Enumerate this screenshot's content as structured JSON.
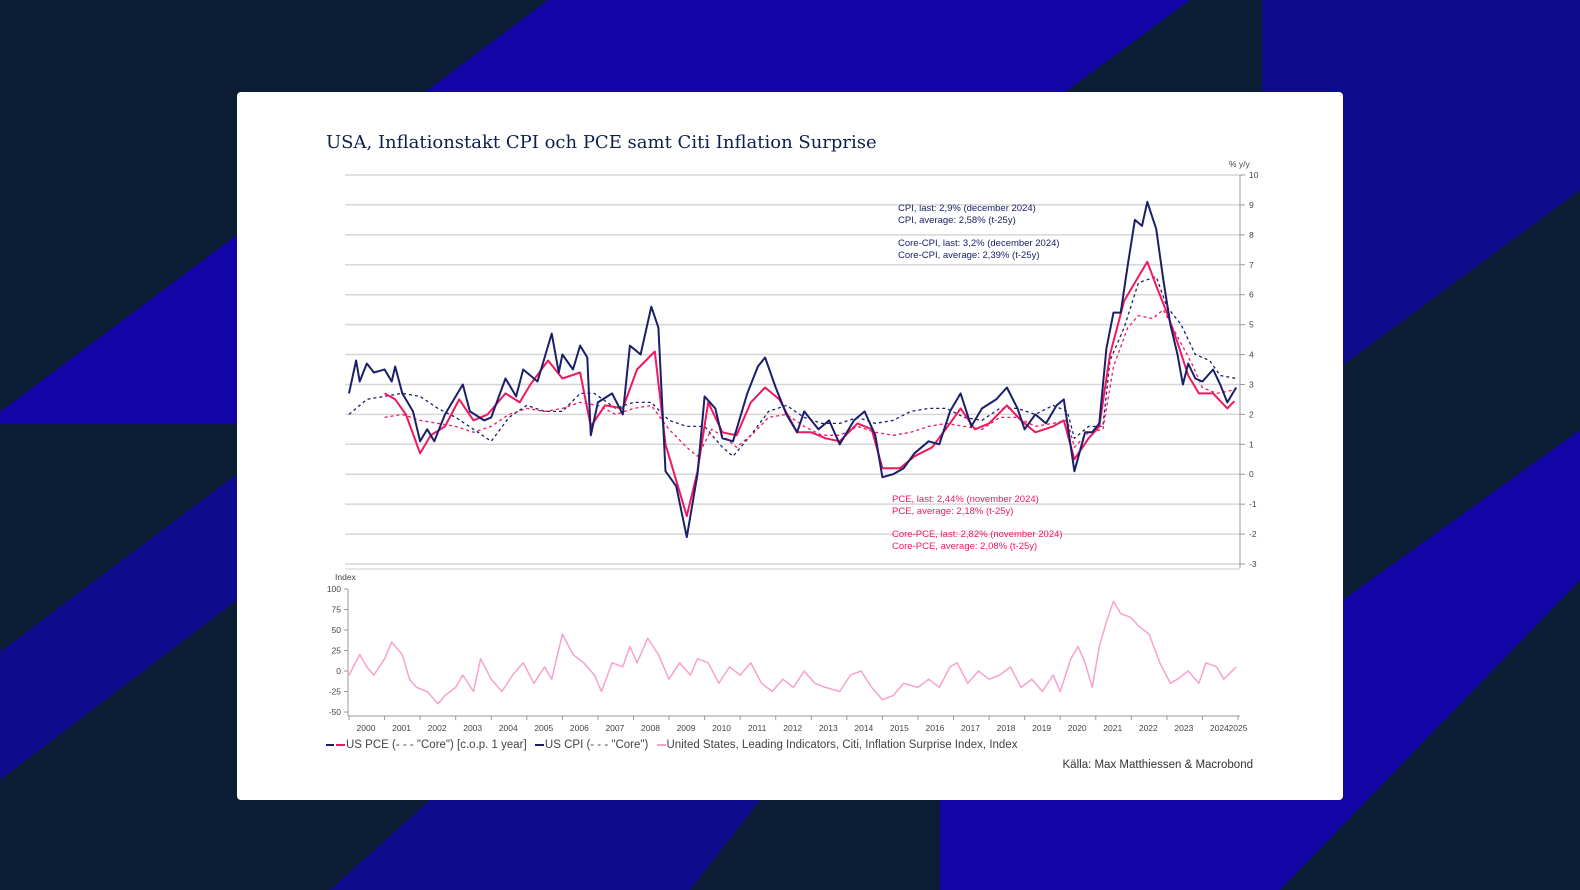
{
  "title": "USA, Inflationstakt CPI och PCE samt Citi Inflation Surprise",
  "colors": {
    "cpi": "#1b1f6b",
    "pce": "#f0185e",
    "citi": "#f7a1cf",
    "background": "#0b1c35",
    "accent": "#1405a6"
  },
  "annotations": {
    "cpi_last": "CPI, last: 2,9% (december 2024)",
    "cpi_avg": "CPI, average: 2,58% (t-25y)",
    "core_cpi_last": "Core-CPI, last: 3,2% (december 2024)",
    "core_cpi_avg": "Core-CPI, average: 2,39% (t-25y)",
    "pce_last": "PCE, last: 2,44% (november 2024)",
    "pce_avg": "PCE, average: 2,18% (t-25y)",
    "core_pce_last": "Core-PCE, last: 2,82% (november 2024)",
    "core_pce_avg": "Core-PCE, average: 2,08% (t-25y)"
  },
  "legend": {
    "pce": "US PCE (- - - \"Core\") [c.o.p. 1 year]",
    "cpi": "US CPI (- - - \"Core\")",
    "citi": "United States, Leading Indicators, Citi, Inflation Surprise Index, Index"
  },
  "source": "Källa: Max Matthiessen & Macrobond",
  "chart_data": [
    {
      "type": "line",
      "ylabel": "% y/y",
      "ylim": [
        -3,
        10
      ],
      "yticks": [
        -3,
        -2,
        -1,
        0,
        1,
        2,
        3,
        4,
        5,
        6,
        7,
        8,
        9,
        10
      ],
      "xlim": [
        2000,
        2025
      ],
      "grid": true,
      "series": [
        {
          "name": "US CPI",
          "style": "solid",
          "color": "#1b1f6b",
          "x": [
            2000,
            2000.2,
            2000.3,
            2000.5,
            2000.7,
            2001.0,
            2001.2,
            2001.3,
            2001.5,
            2001.8,
            2002.0,
            2002.2,
            2002.4,
            2002.7,
            2003.0,
            2003.2,
            2003.4,
            2003.8,
            2004.0,
            2004.4,
            2004.7,
            2004.9,
            2005.3,
            2005.7,
            2005.9,
            2006.0,
            2006.3,
            2006.5,
            2006.7,
            2006.8,
            2007.0,
            2007.4,
            2007.7,
            2007.9,
            2008.2,
            2008.5,
            2008.7,
            2008.9,
            2009.2,
            2009.5,
            2009.8,
            2010.0,
            2010.3,
            2010.5,
            2010.8,
            2011.2,
            2011.5,
            2011.7,
            2012.0,
            2012.3,
            2012.6,
            2012.8,
            2013.2,
            2013.5,
            2013.8,
            2014.2,
            2014.5,
            2014.8,
            2015.0,
            2015.3,
            2015.6,
            2015.9,
            2016.3,
            2016.6,
            2016.9,
            2017.2,
            2017.5,
            2017.8,
            2018.2,
            2018.5,
            2018.8,
            2019.0,
            2019.3,
            2019.6,
            2019.9,
            2020.1,
            2020.4,
            2020.7,
            2020.9,
            2021.1,
            2021.3,
            2021.5,
            2021.7,
            2021.9,
            2022.1,
            2022.3,
            2022.45,
            2022.7,
            2022.9,
            2023.1,
            2023.3,
            2023.45,
            2023.6,
            2023.8,
            2024.0,
            2024.3,
            2024.5,
            2024.7,
            2024.95
          ],
          "y": [
            2.7,
            3.8,
            3.1,
            3.7,
            3.4,
            3.5,
            3.1,
            3.6,
            2.7,
            2.1,
            1.1,
            1.5,
            1.1,
            2.0,
            2.6,
            3.0,
            2.1,
            1.8,
            1.9,
            3.2,
            2.6,
            3.5,
            3.1,
            4.7,
            3.4,
            4.0,
            3.5,
            4.3,
            3.9,
            1.3,
            2.4,
            2.7,
            2.0,
            4.3,
            4.0,
            5.6,
            4.9,
            0.1,
            -0.4,
            -2.1,
            0.0,
            2.6,
            2.2,
            1.2,
            1.1,
            2.7,
            3.6,
            3.9,
            2.9,
            2.0,
            1.4,
            2.1,
            1.5,
            1.8,
            1.0,
            1.8,
            2.1,
            1.3,
            -0.1,
            0.0,
            0.2,
            0.7,
            1.1,
            1.0,
            2.1,
            2.7,
            1.6,
            2.2,
            2.5,
            2.9,
            2.2,
            1.5,
            2.0,
            1.7,
            2.3,
            2.5,
            0.1,
            1.4,
            1.4,
            1.7,
            4.2,
            5.4,
            5.4,
            7.0,
            8.5,
            8.3,
            9.1,
            8.2,
            6.5,
            5.0,
            4.0,
            3.0,
            3.7,
            3.2,
            3.1,
            3.5,
            3.0,
            2.4,
            2.9
          ]
        },
        {
          "name": "US Core CPI",
          "style": "dashed",
          "color": "#1b1f6b",
          "x": [
            2000,
            2000.5,
            2001,
            2001.5,
            2002,
            2002.5,
            2003,
            2003.5,
            2004,
            2004.5,
            2005,
            2005.5,
            2006,
            2006.5,
            2006.9,
            2007.5,
            2008,
            2008.5,
            2009,
            2009.5,
            2010,
            2010.5,
            2010.8,
            2011.3,
            2011.8,
            2012.3,
            2012.8,
            2013.3,
            2013.8,
            2014.3,
            2014.8,
            2015.3,
            2015.8,
            2016.3,
            2016.8,
            2017.3,
            2017.8,
            2018.3,
            2018.8,
            2019.3,
            2019.8,
            2020.2,
            2020.4,
            2020.8,
            2021.2,
            2021.4,
            2021.8,
            2022.2,
            2022.7,
            2023.0,
            2023.4,
            2023.8,
            2024.2,
            2024.5,
            2024.95
          ],
          "y": [
            2.0,
            2.5,
            2.6,
            2.7,
            2.6,
            2.2,
            1.9,
            1.5,
            1.1,
            1.9,
            2.3,
            2.1,
            2.1,
            2.7,
            2.7,
            2.2,
            2.4,
            2.4,
            1.8,
            1.6,
            1.6,
            0.9,
            0.6,
            1.3,
            2.1,
            2.3,
            1.9,
            1.7,
            1.7,
            1.9,
            1.7,
            1.8,
            2.1,
            2.2,
            2.2,
            1.9,
            1.8,
            2.2,
            2.2,
            2.0,
            2.3,
            2.1,
            1.2,
            1.6,
            1.6,
            3.8,
            4.9,
            6.4,
            6.6,
            5.6,
            5.0,
            4.0,
            3.8,
            3.3,
            3.2
          ]
        },
        {
          "name": "US PCE",
          "style": "solid",
          "color": "#f0185e",
          "x": [
            2001,
            2001.3,
            2001.6,
            2002.0,
            2002.3,
            2002.7,
            2003.1,
            2003.5,
            2003.9,
            2004.4,
            2004.8,
            2005.1,
            2005.6,
            2006.0,
            2006.5,
            2006.8,
            2007.2,
            2007.7,
            2008.1,
            2008.6,
            2008.9,
            2009.3,
            2009.5,
            2009.8,
            2010.1,
            2010.5,
            2010.9,
            2011.3,
            2011.7,
            2012.1,
            2012.6,
            2013.0,
            2013.4,
            2013.8,
            2014.3,
            2014.7,
            2015.0,
            2015.5,
            2015.9,
            2016.4,
            2016.9,
            2017.2,
            2017.6,
            2018.0,
            2018.5,
            2018.9,
            2019.3,
            2019.8,
            2020.1,
            2020.4,
            2020.8,
            2021.1,
            2021.4,
            2021.8,
            2022.2,
            2022.45,
            2022.7,
            2023.0,
            2023.3,
            2023.6,
            2023.9,
            2024.3,
            2024.7,
            2024.9
          ],
          "y": [
            2.7,
            2.5,
            2.0,
            0.7,
            1.3,
            1.6,
            2.5,
            1.8,
            2.0,
            2.7,
            2.4,
            3.0,
            3.8,
            3.2,
            3.4,
            1.6,
            2.3,
            2.2,
            3.5,
            4.1,
            1.0,
            -0.6,
            -1.4,
            0.1,
            2.4,
            1.4,
            1.3,
            2.4,
            2.9,
            2.5,
            1.4,
            1.4,
            1.2,
            1.1,
            1.7,
            1.5,
            0.2,
            0.2,
            0.6,
            0.9,
            1.7,
            2.2,
            1.5,
            1.7,
            2.3,
            1.8,
            1.4,
            1.6,
            1.8,
            0.5,
            1.2,
            1.6,
            4.0,
            5.8,
            6.6,
            7.1,
            6.3,
            5.4,
            4.4,
            3.3,
            2.7,
            2.7,
            2.2,
            2.44
          ]
        },
        {
          "name": "US Core PCE",
          "style": "dashed",
          "color": "#f0185e",
          "x": [
            2001,
            2001.5,
            2002,
            2002.5,
            2003,
            2003.5,
            2004,
            2004.5,
            2005,
            2005.5,
            2006,
            2006.5,
            2007,
            2007.5,
            2008,
            2008.5,
            2009,
            2009.5,
            2009.8,
            2010.2,
            2010.6,
            2010.9,
            2011.4,
            2011.8,
            2012.3,
            2012.8,
            2013.3,
            2013.8,
            2014.3,
            2014.8,
            2015.3,
            2015.8,
            2016.3,
            2016.8,
            2017.3,
            2017.8,
            2018.3,
            2018.8,
            2019.3,
            2019.8,
            2020.2,
            2020.4,
            2020.8,
            2021.2,
            2021.5,
            2021.9,
            2022.2,
            2022.6,
            2022.9,
            2023.3,
            2023.7,
            2024.0,
            2024.4,
            2024.9
          ],
          "y": [
            1.9,
            2.0,
            1.8,
            1.7,
            1.6,
            1.4,
            1.6,
            2.0,
            2.2,
            2.1,
            2.2,
            2.4,
            2.3,
            2.0,
            2.2,
            2.3,
            1.5,
            0.9,
            0.6,
            1.5,
            1.2,
            0.9,
            1.4,
            1.9,
            2.0,
            1.6,
            1.3,
            1.3,
            1.6,
            1.4,
            1.3,
            1.4,
            1.6,
            1.7,
            1.6,
            1.5,
            1.9,
            1.9,
            1.6,
            1.7,
            1.8,
            0.9,
            1.4,
            1.5,
            3.6,
            4.9,
            5.3,
            5.2,
            5.5,
            4.6,
            3.7,
            2.9,
            2.7,
            2.82
          ]
        }
      ]
    },
    {
      "type": "line",
      "ylabel": "Index",
      "ylim": [
        -50,
        100
      ],
      "yticks": [
        -50,
        -25,
        0,
        25,
        50,
        75,
        100
      ],
      "xticks": [
        "2000",
        "2001",
        "2002",
        "2003",
        "2004",
        "2005",
        "2006",
        "2007",
        "2008",
        "2009",
        "2010",
        "2011",
        "2012",
        "2013",
        "2014",
        "2015",
        "2016",
        "2017",
        "2018",
        "2019",
        "2020",
        "2021",
        "2022",
        "2023",
        "2024",
        "2025"
      ],
      "series": [
        {
          "name": "Citi Inflation Surprise Index",
          "color": "#f7a1cf",
          "x": [
            2000,
            2000.3,
            2000.5,
            2000.7,
            2001.0,
            2001.2,
            2001.5,
            2001.7,
            2001.9,
            2002.2,
            2002.5,
            2002.7,
            2003.0,
            2003.2,
            2003.5,
            2003.7,
            2004.0,
            2004.3,
            2004.6,
            2004.9,
            2005.2,
            2005.5,
            2005.7,
            2006.0,
            2006.3,
            2006.6,
            2006.9,
            2007.1,
            2007.4,
            2007.7,
            2007.9,
            2008.1,
            2008.4,
            2008.7,
            2009.0,
            2009.3,
            2009.6,
            2009.8,
            2010.1,
            2010.4,
            2010.7,
            2011.0,
            2011.3,
            2011.6,
            2011.9,
            2012.2,
            2012.5,
            2012.8,
            2013.1,
            2013.4,
            2013.8,
            2014.1,
            2014.4,
            2014.7,
            2015.0,
            2015.3,
            2015.6,
            2016.0,
            2016.3,
            2016.6,
            2016.9,
            2017.1,
            2017.4,
            2017.7,
            2018.0,
            2018.3,
            2018.6,
            2018.9,
            2019.2,
            2019.5,
            2019.8,
            2020.0,
            2020.3,
            2020.5,
            2020.7,
            2020.9,
            2021.1,
            2021.3,
            2021.5,
            2021.7,
            2022.0,
            2022.2,
            2022.5,
            2022.8,
            2023.1,
            2023.3,
            2023.6,
            2023.9,
            2024.1,
            2024.4,
            2024.6,
            2024.95
          ],
          "y": [
            -5,
            20,
            5,
            -5,
            15,
            35,
            20,
            -10,
            -20,
            -25,
            -40,
            -30,
            -20,
            -5,
            -25,
            15,
            -10,
            -25,
            -5,
            10,
            -15,
            5,
            -10,
            45,
            20,
            10,
            -5,
            -25,
            10,
            5,
            30,
            10,
            40,
            20,
            -10,
            10,
            -5,
            15,
            10,
            -15,
            5,
            -5,
            10,
            -15,
            -25,
            -10,
            -20,
            0,
            -15,
            -20,
            -25,
            -5,
            0,
            -20,
            -35,
            -30,
            -15,
            -20,
            -10,
            -20,
            5,
            10,
            -15,
            0,
            -10,
            -5,
            5,
            -20,
            -10,
            -25,
            -5,
            -25,
            15,
            30,
            10,
            -20,
            30,
            60,
            85,
            70,
            65,
            55,
            45,
            10,
            -15,
            -10,
            0,
            -15,
            10,
            5,
            -10,
            5
          ]
        }
      ]
    }
  ]
}
